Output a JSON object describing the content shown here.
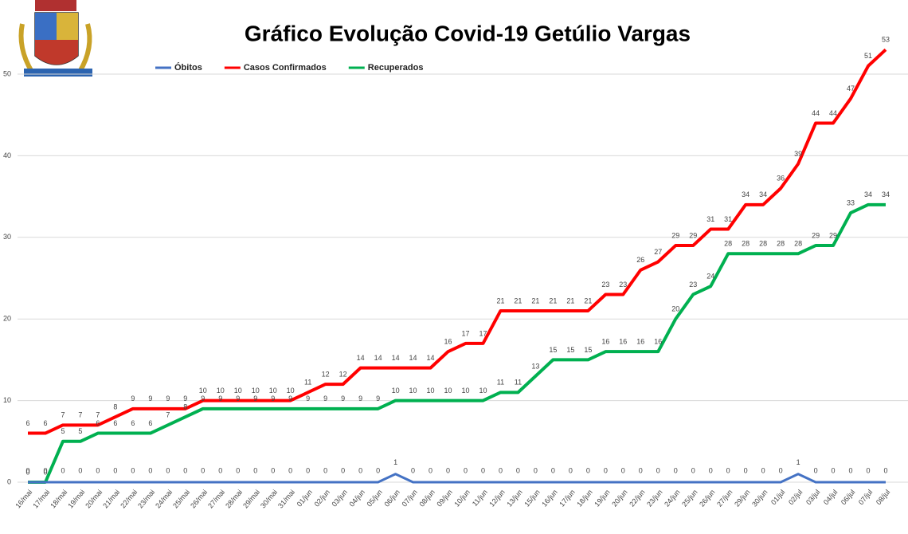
{
  "chart_data": {
    "type": "line",
    "title": "Gráfico Evolução Covid-19 Getúlio Vargas",
    "categories": [
      "16/mai",
      "17/mai",
      "18/mai",
      "19/mai",
      "20/mai",
      "21/mai",
      "22/mai",
      "23/mai",
      "24/mai",
      "25/mai",
      "26/mai",
      "27/mai",
      "28/mai",
      "29/mai",
      "30/mai",
      "31/mai",
      "01/jun",
      "02/jun",
      "03/jun",
      "04/jun",
      "05/jun",
      "06/jun",
      "07/jun",
      "08/jun",
      "09/jun",
      "10/jun",
      "11/jun",
      "12/jun",
      "13/jun",
      "15/jun",
      "16/jun",
      "17/jun",
      "18/jun",
      "19/jun",
      "20/jun",
      "22/jun",
      "23/jun",
      "24/jun",
      "25/jun",
      "26/jun",
      "27/jun",
      "29/jun",
      "30/jun",
      "01/jul",
      "02/jul",
      "03/jul",
      "04/jul",
      "06/jul",
      "07/jul",
      "08/jul"
    ],
    "series": [
      {
        "name": "Óbitos",
        "color": "#4472c4",
        "values": [
          0,
          0,
          0,
          0,
          0,
          0,
          0,
          0,
          0,
          0,
          0,
          0,
          0,
          0,
          0,
          0,
          0,
          0,
          0,
          0,
          0,
          1,
          0,
          0,
          0,
          0,
          0,
          0,
          0,
          0,
          0,
          0,
          0,
          0,
          0,
          0,
          0,
          0,
          0,
          0,
          0,
          0,
          0,
          0,
          1,
          0,
          0,
          0,
          0,
          0
        ]
      },
      {
        "name": "Casos Confirmados",
        "color": "#ff0000",
        "values": [
          6,
          6,
          7,
          7,
          7,
          8,
          9,
          9,
          9,
          9,
          10,
          10,
          10,
          10,
          10,
          10,
          11,
          12,
          12,
          14,
          14,
          14,
          14,
          14,
          16,
          17,
          17,
          21,
          21,
          21,
          21,
          21,
          21,
          23,
          23,
          26,
          27,
          29,
          29,
          31,
          31,
          34,
          34,
          36,
          39,
          44,
          44,
          47,
          51,
          53
        ]
      },
      {
        "name": "Recuperados",
        "color": "#00b050",
        "values": [
          0,
          0,
          5,
          5,
          6,
          6,
          6,
          6,
          7,
          8,
          9,
          9,
          9,
          9,
          9,
          9,
          9,
          9,
          9,
          9,
          9,
          10,
          10,
          10,
          10,
          10,
          10,
          11,
          11,
          13,
          15,
          15,
          15,
          16,
          16,
          16,
          16,
          20,
          23,
          24,
          28,
          28,
          28,
          28,
          28,
          29,
          29,
          33,
          34,
          34
        ]
      }
    ],
    "ylim": [
      0,
      55
    ],
    "yticks": [
      0,
      10,
      20,
      30,
      40,
      50
    ],
    "grid": true
  }
}
